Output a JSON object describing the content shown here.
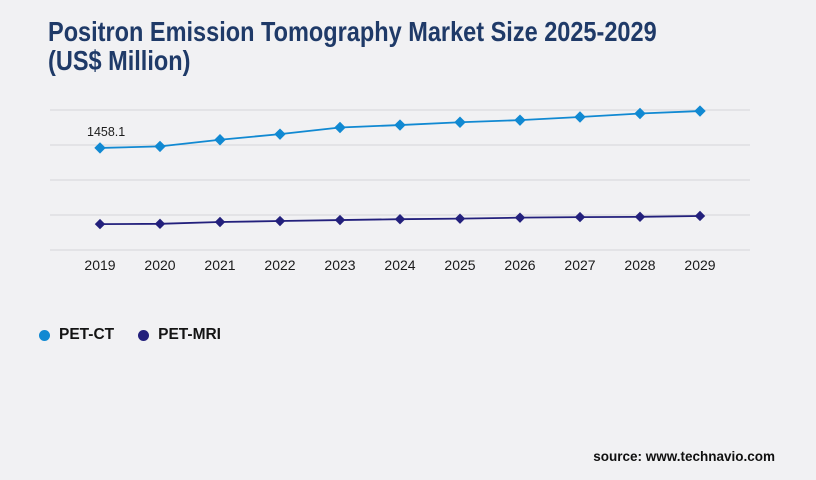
{
  "page": {
    "background_color": "#f1f1f3"
  },
  "header": {
    "title_line1": "Positron Emission Tomography Market Size 2025-2029",
    "title_line2": "(US$ Million)",
    "title_color": "#1f3a68"
  },
  "legend": {
    "marker_shape": "circle",
    "items": [
      {
        "label": "PET-CT",
        "color": "#1189d2"
      },
      {
        "label": "PET-MRI",
        "color": "#23207c"
      }
    ]
  },
  "footer": {
    "source_label": "source: www.technavio.com"
  },
  "chart_data": {
    "type": "line",
    "title": "Positron Emission Tomography Market Size 2025-2029 (US$ Million)",
    "xlabel": "",
    "ylabel": "",
    "categories": [
      "2019",
      "2020",
      "2021",
      "2022",
      "2023",
      "2024",
      "2025",
      "2026",
      "2027",
      "2028",
      "2029"
    ],
    "series": [
      {
        "name": "PET-CT",
        "color": "#1189d2",
        "marker": "diamond",
        "values": [
          1458.1,
          1480,
          1575,
          1655,
          1750,
          1785,
          1825,
          1855,
          1900,
          1950,
          1985
        ]
      },
      {
        "name": "PET-MRI",
        "color": "#23207c",
        "marker": "diamond",
        "values": [
          370,
          374,
          400,
          414,
          428,
          440,
          448,
          462,
          470,
          474,
          486
        ]
      }
    ],
    "ylim": [
      0,
      2000
    ],
    "gridline_values": [
      0,
      500,
      1000,
      1500,
      2000
    ],
    "grid_on": true,
    "grid_color": "#d5d5d8",
    "y_axis_labels_visible": false,
    "legend_position": "bottom-left",
    "data_labels": [
      {
        "series_index": 0,
        "point_index": 0,
        "text": "1458.1"
      }
    ],
    "axis_label_color": "#1a1a1a",
    "data_label_color": "#1c1c1c"
  }
}
